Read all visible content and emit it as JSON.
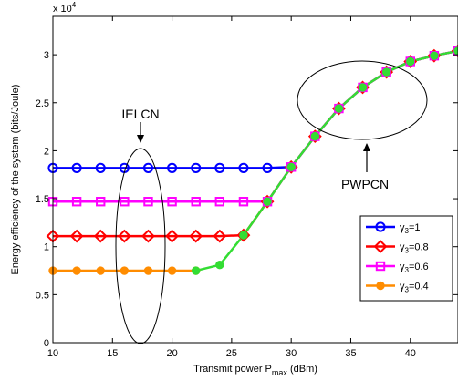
{
  "chart_data": {
    "type": "line",
    "xlabel": "Transmit power P",
    "xlabel_sub": "max",
    "xlabel_unit": " (dBm)",
    "ylabel": "Energy efficiency of the system  (bits/Joule)",
    "y_multiplier_base": "x 10",
    "y_multiplier_exp": "4",
    "xlim": [
      10,
      44
    ],
    "ylim": [
      0,
      3.4
    ],
    "y_scale": 10000,
    "xticks": [
      10,
      15,
      20,
      25,
      30,
      35,
      40
    ],
    "yticks": [
      0,
      0.5,
      1,
      1.5,
      2,
      2.5,
      3
    ],
    "ytick_labels": [
      "0",
      "0.5",
      "1",
      "1.5",
      "2",
      "2.5",
      "3"
    ],
    "grid": false,
    "legend_position": "lower-right",
    "series": [
      {
        "name": "γ3=1",
        "legend_base": "γ",
        "legend_sub": "3",
        "legend_rest": "=1",
        "color": "#0000ff",
        "marker": "circle-open",
        "x": [
          10,
          12,
          14,
          16,
          18,
          20,
          22,
          24,
          26,
          28,
          30,
          32,
          34,
          36,
          38,
          40,
          42,
          44
        ],
        "y": [
          1.82,
          1.82,
          1.82,
          1.82,
          1.82,
          1.82,
          1.82,
          1.82,
          1.82,
          1.82,
          1.83,
          2.15,
          2.44,
          2.66,
          2.82,
          2.93,
          2.99,
          3.04
        ]
      },
      {
        "name": "γ3=0.8",
        "legend_base": "γ",
        "legend_sub": "3",
        "legend_rest": "=0.8",
        "color": "#ff0000",
        "marker": "diamond-open",
        "x": [
          10,
          12,
          14,
          16,
          18,
          20,
          22,
          24,
          26,
          28,
          30,
          32,
          34,
          36,
          38,
          40,
          42,
          44
        ],
        "y": [
          1.11,
          1.11,
          1.11,
          1.11,
          1.11,
          1.11,
          1.11,
          1.11,
          1.12,
          1.47,
          1.83,
          2.15,
          2.44,
          2.66,
          2.82,
          2.93,
          2.99,
          3.04
        ]
      },
      {
        "name": "γ3=0.6",
        "legend_base": "γ",
        "legend_sub": "3",
        "legend_rest": "=0.6",
        "color": "#ff00ff",
        "marker": "square-open",
        "x": [
          10,
          12,
          14,
          16,
          18,
          20,
          22,
          24,
          26,
          28,
          30,
          32,
          34,
          36,
          38,
          40,
          42,
          44
        ],
        "y": [
          1.47,
          1.47,
          1.47,
          1.47,
          1.47,
          1.47,
          1.47,
          1.47,
          1.47,
          1.47,
          1.83,
          2.15,
          2.44,
          2.66,
          2.82,
          2.93,
          2.99,
          3.04
        ]
      },
      {
        "name": "γ3=0.4",
        "legend_base": "γ",
        "legend_sub": "3",
        "legend_rest": "=0.4",
        "color": "#ff8c00",
        "marker": "circle-filled",
        "x": [
          10,
          12,
          14,
          16,
          18,
          20,
          22
        ],
        "y": [
          0.75,
          0.75,
          0.75,
          0.75,
          0.75,
          0.75,
          0.75
        ]
      },
      {
        "name": "",
        "color": "#33dd33",
        "marker": "circle-filled",
        "x": [
          22,
          24,
          26,
          28,
          30,
          32,
          34,
          36,
          38,
          40,
          42,
          44
        ],
        "y": [
          0.75,
          0.81,
          1.12,
          1.47,
          1.83,
          2.15,
          2.44,
          2.66,
          2.82,
          2.93,
          2.99,
          3.04
        ]
      }
    ],
    "annotations": [
      {
        "text": "IELCN"
      },
      {
        "text": "PWPCN"
      }
    ]
  }
}
